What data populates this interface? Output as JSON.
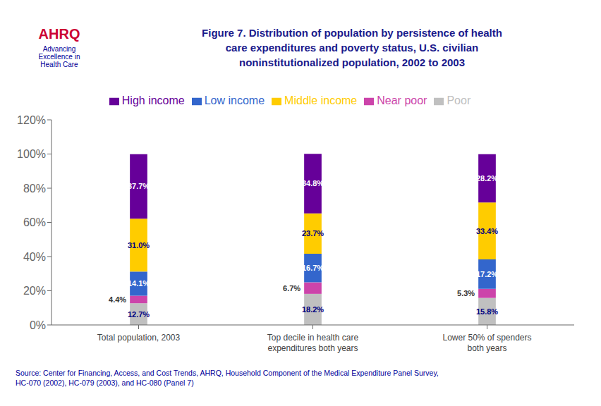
{
  "chart_data": {
    "type": "bar",
    "title": "Figure 7. Distribution of population by persistence of health\ncare expenditures and poverty status, U.S. civilian\nnoninstitutionalized population, 2002 to 2003",
    "annotations": [
      "AHRQ",
      "Advancing\nExcellence in\nHealth Care",
      "Source: Center for Financing, Access, and Cost Trends, AHRQ, Household Component of the Medical Expenditure Panel Survey,\nHC-070 (2002), HC-079 (2003), and HC-080 (Panel 7)"
    ],
    "categories": [
      "Total population, 2003",
      "Top decile in health care\nexpenditures both years",
      "Lower 50% of spenders\nboth years"
    ],
    "series": [
      {
        "name": "Poor",
        "color": "#c0c0c0",
        "values": [
          12.7,
          18.2,
          15.8
        ],
        "value_labels": [
          "12.7%",
          "18.2%",
          "15.8%"
        ]
      },
      {
        "name": "Near poor",
        "color": "#cc44aa",
        "values": [
          4.4,
          6.7,
          5.3
        ],
        "value_labels": [
          "4.4%",
          "6.7%",
          "5.3%"
        ]
      },
      {
        "name": "Low income",
        "color": "#3366cc",
        "values": [
          14.1,
          16.7,
          17.2
        ],
        "value_labels": [
          "14.1%",
          "16.7%",
          "17.2%"
        ]
      },
      {
        "name": "Middle income",
        "color": "#ffcc00",
        "values": [
          31.0,
          23.7,
          33.4
        ],
        "value_labels": [
          "31.0%",
          "23.7%",
          "33.4%"
        ]
      },
      {
        "name": "High income",
        "color": "#660099",
        "values": [
          37.7,
          34.8,
          28.2
        ],
        "value_labels": [
          "37.7%",
          "34.8%",
          "28.2%"
        ]
      }
    ],
    "stacked": true,
    "data_labels": true,
    "ylim": [
      0,
      120
    ],
    "yticks": [
      {
        "value": 0,
        "label": "0%"
      },
      {
        "value": 20,
        "label": "20%"
      },
      {
        "value": 40,
        "label": "40%"
      },
      {
        "value": 60,
        "label": "60%"
      },
      {
        "value": 80,
        "label": "80%"
      },
      {
        "value": 100,
        "label": "100%"
      },
      {
        "value": 120,
        "label": "120%"
      }
    ],
    "grid": false,
    "legend": "top"
  }
}
